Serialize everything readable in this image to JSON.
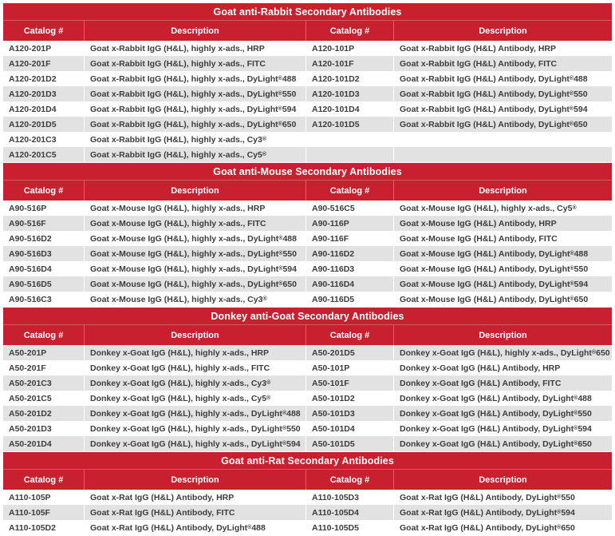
{
  "colors": {
    "header_red": "#c8202f",
    "row_alt_gray": "#e2e2e2",
    "body_text": "#3d3d3d",
    "header_text": "#ffffff"
  },
  "columns": [
    "Catalog #",
    "Description",
    "Catalog #",
    "Description"
  ],
  "sections": [
    {
      "title": "Goat anti-Rabbit Secondary Antibodies",
      "rows": [
        [
          "A120-201P",
          "Goat x-Rabbit IgG (H&L), highly x-ads., HRP",
          "A120-101P",
          "Goat x-Rabbit IgG (H&L) Antibody, HRP"
        ],
        [
          "A120-201F",
          "Goat x-Rabbit IgG (H&L), highly x-ads., FITC",
          "A120-101F",
          "Goat x-Rabbit IgG (H&L) Antibody, FITC"
        ],
        [
          "A120-201D2",
          "Goat x-Rabbit IgG (H&L), highly x-ads., DyLight® 488",
          "A120-101D2",
          "Goat x-Rabbit IgG (H&L) Antibody, DyLight® 488"
        ],
        [
          "A120-201D3",
          "Goat x-Rabbit IgG (H&L), highly x-ads., DyLight® 550",
          "A120-101D3",
          "Goat x-Rabbit IgG (H&L) Antibody, DyLight® 550"
        ],
        [
          "A120-201D4",
          "Goat x-Rabbit IgG (H&L), highly x-ads., DyLight® 594",
          "A120-101D4",
          "Goat x-Rabbit IgG (H&L) Antibody, DyLight® 594"
        ],
        [
          "A120-201D5",
          "Goat x-Rabbit IgG (H&L), highly x-ads., DyLight® 650",
          "A120-101D5",
          "Goat x-Rabbit IgG (H&L) Antibody, DyLight® 650"
        ],
        [
          "A120-201C3",
          "Goat x-Rabbit IgG (H&L), highly x-ads., Cy3®",
          "",
          ""
        ],
        [
          "A120-201C5",
          "Goat x-Rabbit IgG (H&L), highly x-ads., Cy5®",
          "",
          ""
        ]
      ]
    },
    {
      "title": "Goat anti-Mouse Secondary Antibodies",
      "rows": [
        [
          "A90-516P",
          "Goat x-Mouse IgG (H&L), highly x-ads., HRP",
          "A90-516C5",
          "Goat x-Mouse IgG (H&L), highly x-ads., Cy5®"
        ],
        [
          "A90-516F",
          "Goat x-Mouse IgG (H&L), highly x-ads., FITC",
          "A90-116P",
          "Goat x-Mouse IgG (H&L) Antibody, HRP"
        ],
        [
          "A90-516D2",
          "Goat x-Mouse IgG (H&L), highly x-ads., DyLight® 488",
          "A90-116F",
          "Goat x-Mouse IgG (H&L) Antibody, FITC"
        ],
        [
          "A90-516D3",
          "Goat x-Mouse IgG (H&L), highly x-ads., DyLight® 550",
          "A90-116D2",
          "Goat x-Mouse IgG (H&L) Antibody, DyLight® 488"
        ],
        [
          "A90-516D4",
          "Goat x-Mouse IgG (H&L), highly x-ads., DyLight® 594",
          "A90-116D3",
          "Goat x-Mouse IgG (H&L) Antibody, DyLight® 550"
        ],
        [
          "A90-516D5",
          "Goat x-Mouse IgG (H&L), highly x-ads., DyLight® 650",
          "A90-116D4",
          "Goat x-Mouse IgG (H&L) Antibody, DyLight® 594"
        ],
        [
          "A90-516C3",
          "Goat x-Mouse IgG (H&L), highly x-ads., Cy3®",
          "A90-116D5",
          "Goat x-Mouse IgG (H&L) Antibody, DyLight® 650"
        ]
      ]
    },
    {
      "title": "Donkey anti-Goat Secondary Antibodies",
      "rows": [
        [
          "A50-201P",
          "Donkey x-Goat IgG (H&L), highly x-ads., HRP",
          "A50-201D5",
          "Donkey x-Goat IgG (H&L), highly x-ads., DyLight® 650"
        ],
        [
          "A50-201F",
          "Donkey x-Goat IgG (H&L), highly x-ads., FITC",
          "A50-101P",
          "Donkey x-Goat IgG (H&L) Antibody, HRP"
        ],
        [
          "A50-201C3",
          "Donkey x-Goat IgG (H&L), highly x-ads., Cy3®",
          "A50-101F",
          "Donkey x-Goat IgG (H&L) Antibody, FITC"
        ],
        [
          "A50-201C5",
          "Donkey x-Goat IgG (H&L), highly x-ads., Cy5®",
          "A50-101D2",
          "Donkey x-Goat IgG (H&L) Antibody, DyLight® 488"
        ],
        [
          "A50-201D2",
          "Donkey x-Goat IgG (H&L), highly x-ads., DyLight® 488",
          "A50-101D3",
          "Donkey x-Goat IgG (H&L) Antibody, DyLight® 550"
        ],
        [
          "A50-201D3",
          "Donkey x-Goat IgG (H&L), highly x-ads., DyLight® 550",
          "A50-101D4",
          "Donkey x-Goat IgG (H&L) Antibody, DyLight® 594"
        ],
        [
          "A50-201D4",
          "Donkey x-Goat IgG (H&L), highly x-ads., DyLight® 594",
          "A50-101D5",
          "Donkey x-Goat IgG (H&L) Antibody, DyLight® 650"
        ]
      ]
    },
    {
      "title": "Goat anti-Rat Secondary Antibodies",
      "rows": [
        [
          "A110-105P",
          "Goat x-Rat IgG (H&L) Antibody, HRP",
          "A110-105D3",
          "Goat x-Rat IgG (H&L) Antibody, DyLight® 550"
        ],
        [
          "A110-105F",
          "Goat x-Rat IgG (H&L) Antibody, FITC",
          "A110-105D4",
          "Goat x-Rat IgG (H&L) Antibody, DyLight® 594"
        ],
        [
          "A110-105D2",
          "Goat x-Rat IgG (H&L) Antibody, DyLight® 488",
          "A110-105D5",
          "Goat x-Rat IgG (H&L) Antibody, DyLight® 650"
        ]
      ]
    }
  ]
}
